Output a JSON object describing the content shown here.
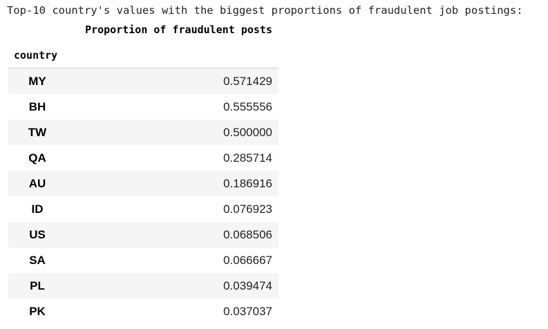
{
  "output_text": "Top-10 country's values with the biggest proportions of fraudulent job postings:",
  "table": {
    "column_header": "Proportion of fraudulent posts",
    "index_name": "country",
    "rows": [
      {
        "country": "MY",
        "value": "0.571429"
      },
      {
        "country": "BH",
        "value": "0.555556"
      },
      {
        "country": "TW",
        "value": "0.500000"
      },
      {
        "country": "QA",
        "value": "0.285714"
      },
      {
        "country": "AU",
        "value": "0.186916"
      },
      {
        "country": "ID",
        "value": "0.076923"
      },
      {
        "country": "US",
        "value": "0.068506"
      },
      {
        "country": "SA",
        "value": "0.066667"
      },
      {
        "country": "PL",
        "value": "0.039474"
      },
      {
        "country": "PK",
        "value": "0.037037"
      }
    ]
  }
}
